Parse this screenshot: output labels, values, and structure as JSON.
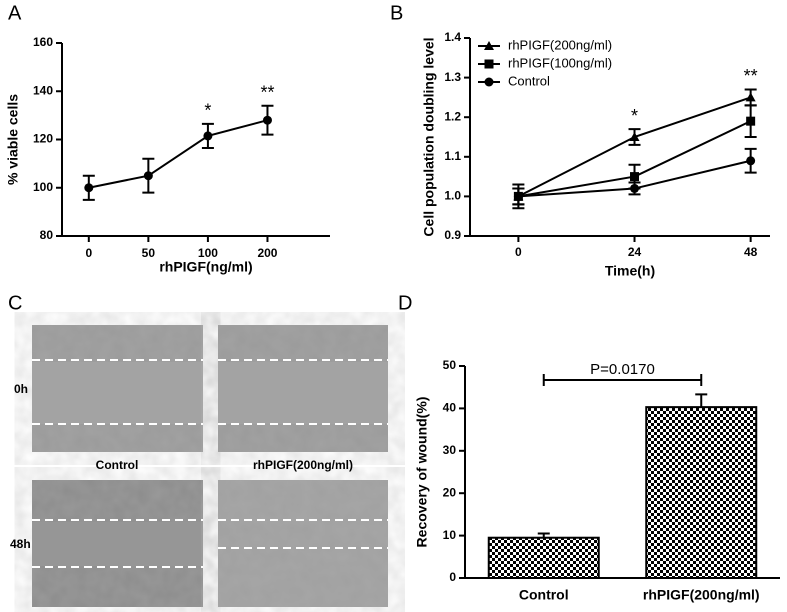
{
  "panels": [
    "A",
    "B",
    "C",
    "D"
  ],
  "images": {
    "rows": [
      "0h",
      "48h"
    ],
    "columns": [
      "Control",
      "rhPIGF(200ng/ml)"
    ]
  },
  "chart_data": [
    {
      "type": "line",
      "xlabel": "rhPIGF(ng/ml)",
      "ylabel": "% viable cells",
      "categories": [
        "0",
        "50",
        "100",
        "200"
      ],
      "series": [
        {
          "color": "#000000",
          "marker": "circle",
          "values": [
            100,
            105,
            121.5,
            128
          ],
          "errors": [
            5,
            7,
            5,
            6
          ]
        }
      ],
      "significance": [
        null,
        null,
        "*",
        "**"
      ],
      "ylim": [
        80,
        160
      ],
      "yticks": [
        80,
        100,
        120,
        140,
        160
      ]
    },
    {
      "type": "line",
      "xlabel": "Time(h)",
      "ylabel": "Cell population doubling level",
      "x": [
        0,
        24,
        48
      ],
      "xlim": [
        -10,
        52
      ],
      "xticks": [
        0,
        24,
        48
      ],
      "series": [
        {
          "name": "rhPIGF(200ng/ml)",
          "color": "#000000",
          "marker": "triangle",
          "values": [
            1.0,
            1.15,
            1.25
          ],
          "errors": [
            0.02,
            0.02,
            0.02
          ]
        },
        {
          "name": "rhPIGF(100ng/ml)",
          "color": "#000000",
          "marker": "square",
          "values": [
            1.0,
            1.05,
            1.19
          ],
          "errors": [
            0.02,
            0.03,
            0.04
          ]
        },
        {
          "name": "Control",
          "color": "#000000",
          "marker": "circle",
          "values": [
            1.0,
            1.02,
            1.09
          ],
          "errors": [
            0.03,
            0.015,
            0.03
          ]
        }
      ],
      "significance": [
        null,
        "*",
        "**"
      ],
      "ylim": [
        0.9,
        1.4
      ],
      "yticks": [
        0.9,
        {
          "value": 1,
          "label": "1.0"
        },
        1.1,
        1.2,
        1.3,
        1.4
      ],
      "legend": "upper left"
    },
    {
      "type": "bar",
      "ylabel": "Recovery of wound(%)",
      "categories": [
        "Control",
        "rhPIGF(200ng/ml)"
      ],
      "values": [
        9.5,
        40.3
      ],
      "errors": [
        1,
        3
      ],
      "annotation": "P=0.0170",
      "ylim": [
        0,
        50
      ],
      "yticks": [
        0,
        10,
        20,
        30,
        40,
        50
      ]
    }
  ]
}
